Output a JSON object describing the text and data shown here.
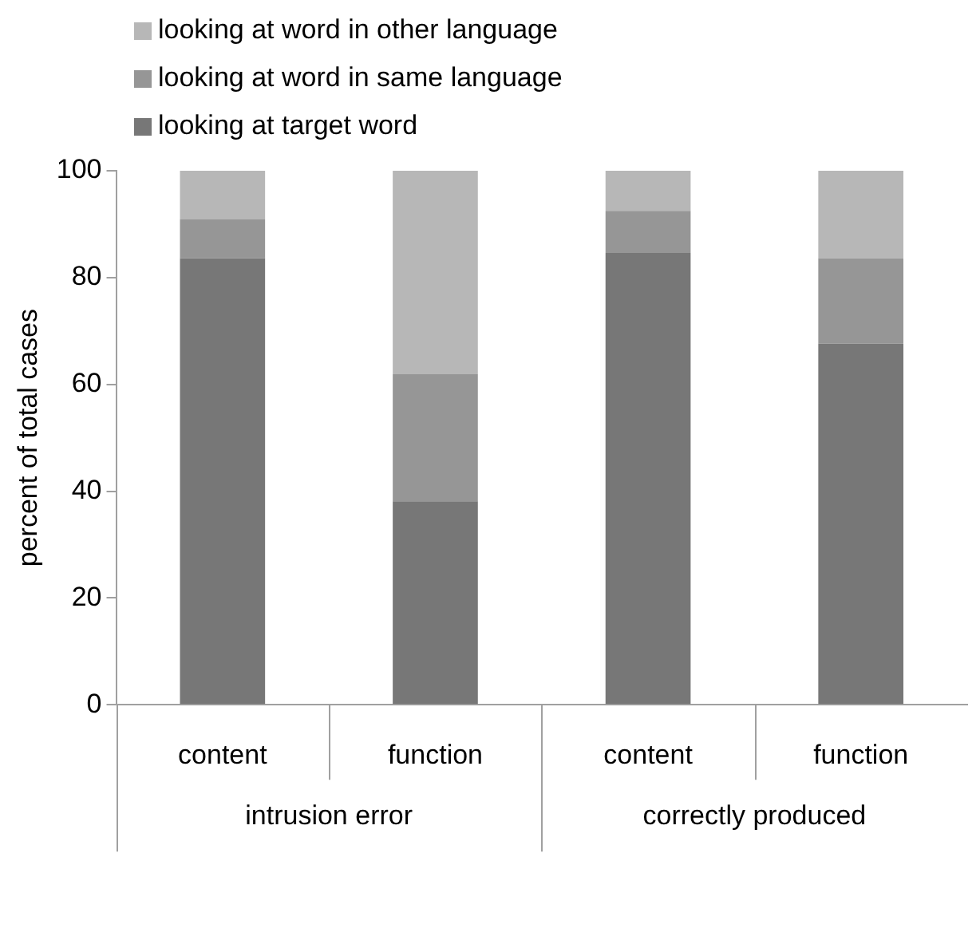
{
  "chart_data": {
    "type": "bar",
    "stacked": true,
    "ylabel": "percent of total cases",
    "categories": [
      "content",
      "function",
      "content",
      "function"
    ],
    "series": [
      {
        "name": "looking at target word",
        "color": "#777777",
        "values": [
          83.6,
          38.1,
          84.6,
          67.6
        ]
      },
      {
        "name": "looking at word in same language",
        "color": "#969696",
        "values": [
          7.3,
          23.8,
          7.9,
          16.0
        ]
      },
      {
        "name": "looking at word in other language",
        "color": "#b7b7b7",
        "values": [
          9.1,
          38.1,
          7.5,
          16.4
        ]
      }
    ],
    "ylim": [
      0,
      100
    ],
    "yticks": [
      0,
      20,
      40,
      60,
      80,
      100
    ],
    "grid": false,
    "legend": "top left",
    "annotations": [
      "intrusion error",
      "correctly produced"
    ]
  }
}
